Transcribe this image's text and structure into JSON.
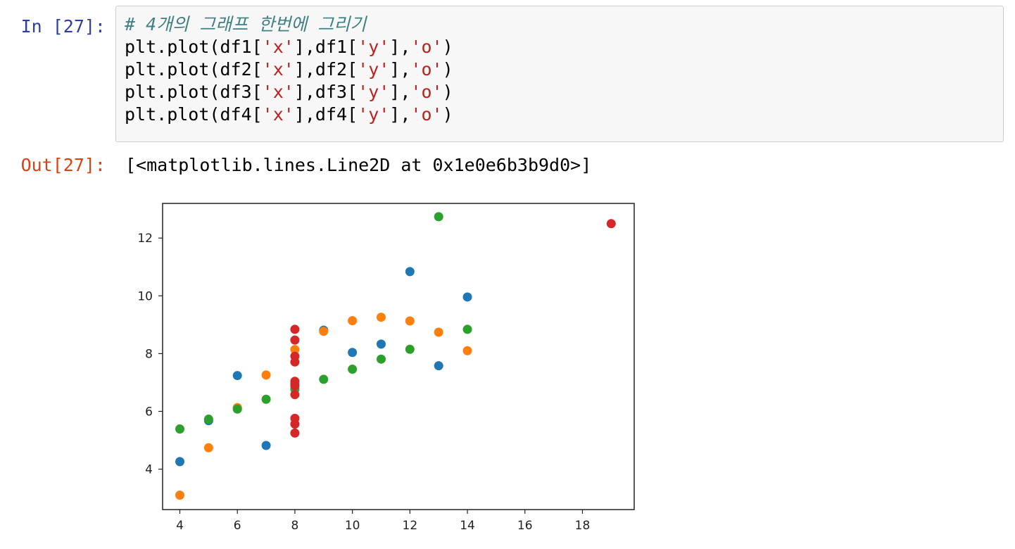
{
  "input_prompt": "In [27]:",
  "output_prompt": "Out[27]:",
  "code": {
    "comment": "# 4개의 그래프 한번에 그리기",
    "lines": [
      {
        "pre": "plt.plot(df1[",
        "s1": "'x'",
        "mid": "],df1[",
        "s2": "'y'",
        "post1": "],",
        "s3": "'o'",
        "post2": ")"
      },
      {
        "pre": "plt.plot(df2[",
        "s1": "'x'",
        "mid": "],df2[",
        "s2": "'y'",
        "post1": "],",
        "s3": "'o'",
        "post2": ")"
      },
      {
        "pre": "plt.plot(df3[",
        "s1": "'x'",
        "mid": "],df3[",
        "s2": "'y'",
        "post1": "],",
        "s3": "'o'",
        "post2": ")"
      },
      {
        "pre": "plt.plot(df4[",
        "s1": "'x'",
        "mid": "],df4[",
        "s2": "'y'",
        "post1": "],",
        "s3": "'o'",
        "post2": ")"
      }
    ]
  },
  "output_text": "[<matplotlib.lines.Line2D at 0x1e0e6b3b9d0>]",
  "chart_data": {
    "type": "scatter",
    "xlim": [
      3.4,
      19.8
    ],
    "ylim": [
      2.6,
      13.2
    ],
    "xticks": [
      4,
      6,
      8,
      10,
      12,
      14,
      16,
      18
    ],
    "yticks": [
      4,
      6,
      8,
      10,
      12
    ],
    "grid": false,
    "series": [
      {
        "color": "#1f77b4",
        "points": [
          [
            10,
            8.04
          ],
          [
            8,
            6.95
          ],
          [
            13,
            7.58
          ],
          [
            9,
            8.81
          ],
          [
            11,
            8.33
          ],
          [
            14,
            9.96
          ],
          [
            6,
            7.24
          ],
          [
            4,
            4.26
          ],
          [
            12,
            10.84
          ],
          [
            7,
            4.82
          ],
          [
            5,
            5.68
          ]
        ]
      },
      {
        "color": "#ff7f0e",
        "points": [
          [
            10,
            9.14
          ],
          [
            8,
            8.14
          ],
          [
            13,
            8.74
          ],
          [
            9,
            8.77
          ],
          [
            11,
            9.26
          ],
          [
            14,
            8.1
          ],
          [
            6,
            6.13
          ],
          [
            4,
            3.1
          ],
          [
            12,
            9.13
          ],
          [
            7,
            7.26
          ],
          [
            5,
            4.74
          ]
        ]
      },
      {
        "color": "#2ca02c",
        "points": [
          [
            10,
            7.46
          ],
          [
            8,
            6.77
          ],
          [
            13,
            12.74
          ],
          [
            9,
            7.11
          ],
          [
            11,
            7.81
          ],
          [
            14,
            8.84
          ],
          [
            6,
            6.08
          ],
          [
            4,
            5.39
          ],
          [
            12,
            8.15
          ],
          [
            7,
            6.42
          ],
          [
            5,
            5.73
          ]
        ]
      },
      {
        "color": "#d62728",
        "points": [
          [
            8,
            6.58
          ],
          [
            8,
            5.76
          ],
          [
            8,
            7.71
          ],
          [
            8,
            8.84
          ],
          [
            8,
            8.47
          ],
          [
            8,
            7.04
          ],
          [
            8,
            5.25
          ],
          [
            19,
            12.5
          ],
          [
            8,
            5.56
          ],
          [
            8,
            7.91
          ],
          [
            8,
            6.89
          ]
        ]
      }
    ]
  }
}
